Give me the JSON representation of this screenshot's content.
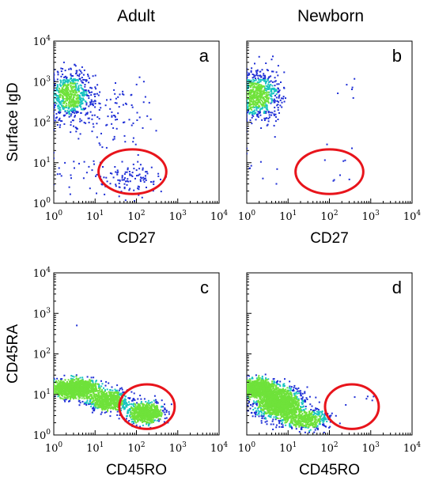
{
  "column_titles": [
    "Adult",
    "Newborn"
  ],
  "colors": {
    "gate": "#e8141b",
    "dot_low": "#1f2fd6",
    "dot_mid": "#18c4c0",
    "dot_high": "#6fe23a"
  },
  "chart_data": [
    {
      "panel": "a",
      "type": "scatter",
      "column": "Adult",
      "xlabel": "CD27",
      "ylabel": "Surface IgD",
      "xscale": "log",
      "yscale": "log",
      "xlim": [
        1,
        10000
      ],
      "ylim": [
        1,
        10000
      ],
      "xtick_labels": [
        "10^0",
        "10^1",
        "10^2",
        "10^3",
        "10^4"
      ],
      "ytick_labels": [
        "10^0",
        "10^1",
        "10^2",
        "10^3",
        "10^4"
      ],
      "populations": [
        {
          "x_center": 2.5,
          "y_center": 450,
          "x_spread_decades": 0.28,
          "y_spread_decades": 0.3,
          "count": 700
        },
        {
          "x_center": 40,
          "y_center": 170,
          "x_spread_decades": 0.45,
          "y_spread_decades": 0.45,
          "count": 95
        },
        {
          "x_center": 70,
          "y_center": 4,
          "x_spread_decades": 0.35,
          "y_spread_decades": 0.22,
          "count": 110
        },
        {
          "x_center": 4,
          "y_center": 6,
          "x_spread_decades": 0.4,
          "y_spread_decades": 0.3,
          "count": 25
        }
      ],
      "gate": {
        "shape": "ellipse",
        "x_center": 80,
        "y_center": 6,
        "x_half_width_decades": 0.82,
        "y_half_height_decades": 0.55
      }
    },
    {
      "panel": "b",
      "type": "scatter",
      "column": "Newborn",
      "xlabel": "CD27",
      "ylabel": "",
      "xscale": "log",
      "yscale": "log",
      "xlim": [
        1,
        10000
      ],
      "ylim": [
        1,
        10000
      ],
      "xtick_labels": [
        "10^0",
        "10^1",
        "10^2",
        "10^3",
        "10^4"
      ],
      "ytick_labels": [],
      "populations": [
        {
          "x_center": 2.0,
          "y_center": 450,
          "x_spread_decades": 0.25,
          "y_spread_decades": 0.3,
          "count": 700
        },
        {
          "x_center": 300,
          "y_center": 300,
          "x_spread_decades": 0.25,
          "y_spread_decades": 0.6,
          "count": 8
        },
        {
          "x_center": 200,
          "y_center": 6,
          "x_spread_decades": 0.2,
          "y_spread_decades": 0.2,
          "count": 7
        },
        {
          "x_center": 3,
          "y_center": 8,
          "x_spread_decades": 0.35,
          "y_spread_decades": 0.35,
          "count": 10
        }
      ],
      "gate": {
        "shape": "ellipse",
        "x_center": 100,
        "y_center": 6,
        "x_half_width_decades": 0.82,
        "y_half_height_decades": 0.55
      }
    },
    {
      "panel": "c",
      "type": "scatter",
      "column": "Adult",
      "xlabel": "CD45RO",
      "ylabel": "CD45RA",
      "xscale": "log",
      "yscale": "log",
      "xlim": [
        1,
        10000
      ],
      "ylim": [
        1,
        10000
      ],
      "xtick_labels": [
        "10^0",
        "10^1",
        "10^2",
        "10^3",
        "10^4"
      ],
      "ytick_labels": [
        "10^0",
        "10^1",
        "10^2",
        "10^3",
        "10^4"
      ],
      "populations": [
        {
          "x_center": 3,
          "y_center": 14,
          "x_spread_decades": 0.3,
          "y_spread_decades": 0.11,
          "count": 1300
        },
        {
          "x_center": 20,
          "y_center": 7,
          "x_spread_decades": 0.25,
          "y_spread_decades": 0.13,
          "count": 700
        },
        {
          "x_center": 170,
          "y_center": 3.5,
          "x_spread_decades": 0.2,
          "y_spread_decades": 0.12,
          "count": 800
        },
        {
          "x_center": 4,
          "y_center": 450,
          "x_spread_decades": 0.05,
          "y_spread_decades": 0.05,
          "count": 1
        }
      ],
      "gate": {
        "shape": "ellipse",
        "x_center": 180,
        "y_center": 5,
        "x_half_width_decades": 0.67,
        "y_half_height_decades": 0.55
      }
    },
    {
      "panel": "d",
      "type": "scatter",
      "column": "Newborn",
      "xlabel": "CD45RO",
      "ylabel": "",
      "xscale": "log",
      "yscale": "log",
      "xlim": [
        1,
        10000
      ],
      "ylim": [
        1,
        10000
      ],
      "xtick_labels": [
        "10^0",
        "10^1",
        "10^2",
        "10^3",
        "10^4"
      ],
      "ytick_labels": [],
      "populations": [
        {
          "x_center": 2,
          "y_center": 14,
          "x_spread_decades": 0.2,
          "y_spread_decades": 0.12,
          "count": 900
        },
        {
          "x_center": 6,
          "y_center": 6,
          "x_spread_decades": 0.28,
          "y_spread_decades": 0.18,
          "count": 1500
        },
        {
          "x_center": 25,
          "y_center": 2.5,
          "x_spread_decades": 0.3,
          "y_spread_decades": 0.12,
          "count": 500
        },
        {
          "x_center": 600,
          "y_center": 9,
          "x_spread_decades": 0.25,
          "y_spread_decades": 0.1,
          "count": 5
        }
      ],
      "gate": {
        "shape": "ellipse",
        "x_center": 350,
        "y_center": 5,
        "x_half_width_decades": 0.65,
        "y_half_height_decades": 0.55
      }
    }
  ]
}
